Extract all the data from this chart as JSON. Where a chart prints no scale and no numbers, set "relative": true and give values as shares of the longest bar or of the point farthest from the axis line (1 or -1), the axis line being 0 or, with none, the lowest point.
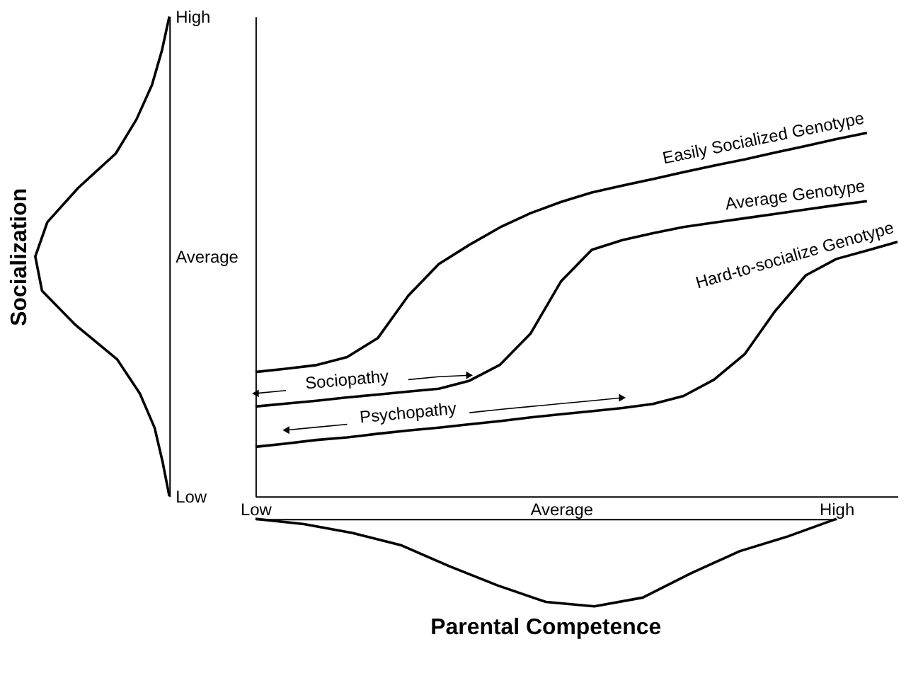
{
  "chart_data": [
    {
      "type": "line",
      "relative": true,
      "orientation": "horizontal",
      "ylabel": "Socialization",
      "categories": [
        "High",
        null,
        null,
        null,
        null,
        null,
        null,
        "Average",
        null,
        null,
        null,
        null,
        null,
        null,
        "Low"
      ],
      "series": [
        {
          "color": "#000000",
          "values": [
            0,
            -0.056,
            -0.13,
            -0.245,
            -0.4,
            -0.68,
            -0.91,
            -1.0,
            -0.95,
            -0.7,
            -0.39,
            -0.22,
            -0.11,
            -0.05,
            0
          ]
        }
      ]
    },
    {
      "type": "line",
      "relative": true,
      "categories": [
        "Low",
        null,
        null,
        null,
        null,
        null,
        null,
        null,
        null,
        null,
        "Average",
        null,
        null,
        null,
        null,
        null,
        null,
        null,
        null,
        "High",
        null,
        null
      ],
      "series": [
        {
          "name": "Easily Socialized Genotype",
          "color": "#000000",
          "values": [
            0.342,
            0.351,
            0.361,
            0.383,
            0.435,
            0.552,
            0.639,
            0.692,
            0.74,
            0.779,
            0.81,
            0.836,
            0.855,
            0.873,
            0.892,
            0.91,
            0.927,
            0.946,
            0.964,
            0.983,
            1.0,
            null
          ]
        },
        {
          "name": "Average Genotype",
          "color": "#000000",
          "values": [
            0.247,
            0.255,
            0.263,
            0.272,
            0.28,
            0.288,
            0.296,
            0.318,
            0.362,
            0.448,
            0.592,
            0.678,
            0.705,
            0.724,
            0.741,
            0.753,
            0.765,
            0.777,
            0.789,
            0.801,
            0.812,
            null
          ]
        },
        {
          "name": "Hard-to-socialize Genotype",
          "color": "#000000",
          "values": [
            0.136,
            0.145,
            0.155,
            0.162,
            0.172,
            0.181,
            0.189,
            0.198,
            0.207,
            0.217,
            0.226,
            0.234,
            0.243,
            0.254,
            0.276,
            0.321,
            0.391,
            0.51,
            0.608,
            0.653,
            0.676,
            0.7
          ]
        },
        {
          "color": "#000000",
          "values": [
            0.283,
            0.291,
            null,
            null,
            null,
            0.321,
            0.329,
            0.333,
            null,
            null,
            null,
            null,
            null,
            null,
            null,
            null,
            null,
            null,
            null,
            null,
            null,
            null
          ]
        },
        {
          "color": "#000000",
          "values": [
            null,
            0.182,
            0.19,
            0.198,
            null,
            null,
            null,
            0.23,
            0.239,
            0.247,
            0.255,
            0.263,
            0.271,
            null,
            null,
            null,
            null,
            null,
            null,
            null,
            null,
            null
          ]
        }
      ],
      "annotations": [
        "Sociopathy",
        "Psychopathy"
      ]
    },
    {
      "type": "line",
      "relative": true,
      "xlabel": "Parental Competence",
      "categories": [
        null,
        null,
        null,
        null,
        null,
        null,
        null,
        null,
        null,
        null,
        null,
        null,
        null
      ],
      "series": [
        {
          "color": "#000000",
          "values": [
            0,
            -0.06,
            -0.16,
            -0.3,
            -0.54,
            -0.76,
            -0.95,
            -1.0,
            -0.9,
            -0.62,
            -0.37,
            -0.2,
            0
          ]
        }
      ]
    }
  ]
}
